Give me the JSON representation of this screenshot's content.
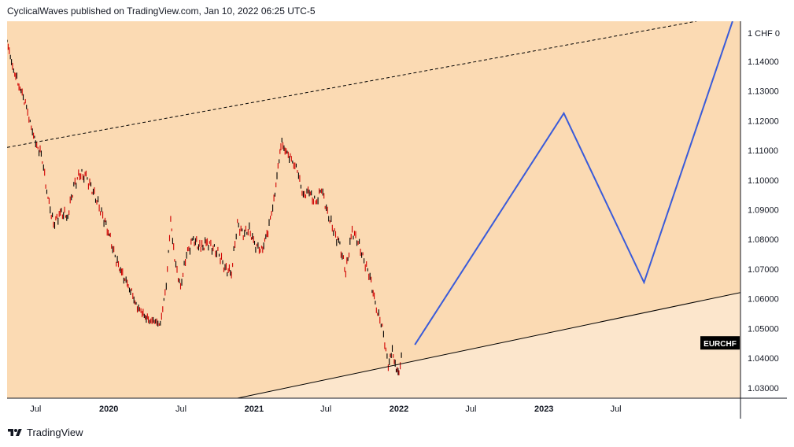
{
  "header": {
    "published_line": "CyclicalWaves published on TradingView.com, Jan 10, 2022 06:25 UTC-5"
  },
  "footer": {
    "brand": "TradingView",
    "logo_icon": "tradingview-logo-icon"
  },
  "chart_data": {
    "type": "line",
    "symbol_badge": "EURCHF",
    "currency_label": "1 CHF 0",
    "y_ticks": [
      "1.14000",
      "1.13000",
      "1.12000",
      "1.11000",
      "1.10000",
      "1.09000",
      "1.08000",
      "1.07000",
      "1.06000",
      "1.05000",
      "1.04000",
      "1.03000"
    ],
    "ylim": [
      1.0265,
      1.1535
    ],
    "x_ticks": [
      {
        "label": "Jul",
        "date": "2019-07-01"
      },
      {
        "label": "2020",
        "date": "2020-01-01"
      },
      {
        "label": "Jul",
        "date": "2020-07-01"
      },
      {
        "label": "2021",
        "date": "2021-01-01"
      },
      {
        "label": "Jul",
        "date": "2021-07-01"
      },
      {
        "label": "2022",
        "date": "2022-01-01"
      },
      {
        "label": "Jul",
        "date": "2022-07-01"
      },
      {
        "label": "2023",
        "date": "2023-01-01"
      },
      {
        "label": "Jul",
        "date": "2023-07-01"
      }
    ],
    "xlim": [
      "2019-04-20",
      "2024-05-10"
    ],
    "colors": {
      "background_upper": "#fbdab3",
      "background_lower": "#fce6cc",
      "price_up": "#000000",
      "price_down": "#d10000",
      "projection": "#3a5bd9",
      "trendline": "#000000"
    },
    "price_path": [
      [
        "2019-04-20",
        1.1475
      ],
      [
        "2019-05-01",
        1.139
      ],
      [
        "2019-05-20",
        1.132
      ],
      [
        "2019-06-05",
        1.126
      ],
      [
        "2019-06-20",
        1.118
      ],
      [
        "2019-07-01",
        1.112
      ],
      [
        "2019-07-15",
        1.109
      ],
      [
        "2019-08-01",
        1.094
      ],
      [
        "2019-08-15",
        1.085
      ],
      [
        "2019-09-01",
        1.089
      ],
      [
        "2019-09-20",
        1.088
      ],
      [
        "2019-10-05",
        1.098
      ],
      [
        "2019-10-20",
        1.102
      ],
      [
        "2019-11-05",
        1.101
      ],
      [
        "2019-11-20",
        1.097
      ],
      [
        "2019-12-05",
        1.092
      ],
      [
        "2019-12-20",
        1.087
      ],
      [
        "2020-01-05",
        1.08
      ],
      [
        "2020-01-20",
        1.073
      ],
      [
        "2020-02-05",
        1.068
      ],
      [
        "2020-02-25",
        1.063
      ],
      [
        "2020-03-10",
        1.058
      ],
      [
        "2020-03-25",
        1.055
      ],
      [
        "2020-04-10",
        1.053
      ],
      [
        "2020-04-25",
        1.052
      ],
      [
        "2020-05-10",
        1.052
      ],
      [
        "2020-05-25",
        1.064
      ],
      [
        "2020-06-05",
        1.087
      ],
      [
        "2020-06-15",
        1.073
      ],
      [
        "2020-06-30",
        1.064
      ],
      [
        "2020-07-15",
        1.075
      ],
      [
        "2020-08-01",
        1.08
      ],
      [
        "2020-08-20",
        1.077
      ],
      [
        "2020-09-05",
        1.079
      ],
      [
        "2020-09-20",
        1.077
      ],
      [
        "2020-10-05",
        1.075
      ],
      [
        "2020-10-20",
        1.07
      ],
      [
        "2020-11-05",
        1.069
      ],
      [
        "2020-11-20",
        1.085
      ],
      [
        "2020-12-05",
        1.082
      ],
      [
        "2020-12-20",
        1.083
      ],
      [
        "2021-01-05",
        1.078
      ],
      [
        "2021-01-20",
        1.076
      ],
      [
        "2021-02-05",
        1.083
      ],
      [
        "2021-02-20",
        1.093
      ],
      [
        "2021-03-05",
        1.107
      ],
      [
        "2021-03-12",
        1.113
      ],
      [
        "2021-03-20",
        1.11
      ],
      [
        "2021-04-05",
        1.107
      ],
      [
        "2021-04-20",
        1.103
      ],
      [
        "2021-05-05",
        1.095
      ],
      [
        "2021-05-20",
        1.096
      ],
      [
        "2021-06-05",
        1.092
      ],
      [
        "2021-06-20",
        1.097
      ],
      [
        "2021-07-05",
        1.089
      ],
      [
        "2021-07-20",
        1.083
      ],
      [
        "2021-08-05",
        1.078
      ],
      [
        "2021-08-20",
        1.069
      ],
      [
        "2021-09-05",
        1.083
      ],
      [
        "2021-09-20",
        1.079
      ],
      [
        "2021-10-05",
        1.073
      ],
      [
        "2021-10-20",
        1.067
      ],
      [
        "2021-11-05",
        1.057
      ],
      [
        "2021-11-20",
        1.05
      ],
      [
        "2021-12-05",
        1.038
      ],
      [
        "2021-12-15",
        1.042
      ],
      [
        "2021-12-25",
        1.037
      ],
      [
        "2022-01-01",
        1.034
      ],
      [
        "2022-01-10",
        1.045
      ]
    ],
    "projection_path": [
      [
        "2022-02-10",
        1.0445
      ],
      [
        "2023-02-20",
        1.1225
      ],
      [
        "2023-09-10",
        1.0655
      ],
      [
        "2024-04-20",
        1.1535
      ]
    ],
    "upper_trendline": {
      "style": "dashed",
      "from": [
        "2019-04-20",
        1.111
      ],
      "to": [
        "2024-01-20",
        1.1535
      ]
    },
    "lower_trendline": {
      "style": "solid",
      "from": [
        "2020-11-20",
        1.0265
      ],
      "to": [
        "2024-05-10",
        1.0621
      ]
    }
  }
}
